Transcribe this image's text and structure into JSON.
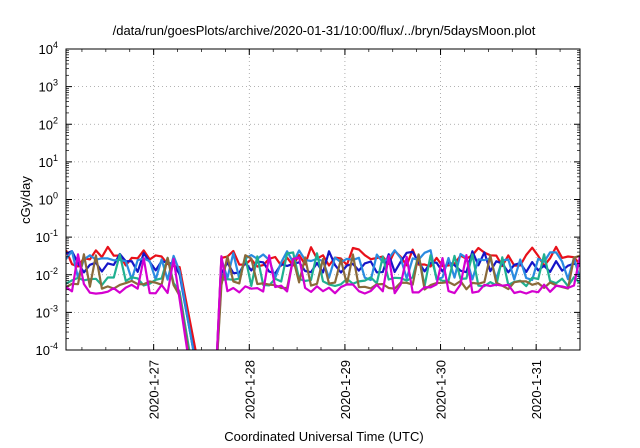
{
  "chart_data": {
    "type": "line",
    "title": "/data/run/goesPlots/archive/2020-01-31/10:00/flux/../bryn/5daysMoon.plot",
    "xlabel": "Coordinated Universal Time (UTC)",
    "ylabel": "cGy/day",
    "xscale": "time",
    "yscale": "log",
    "xlim": [
      "2020-01-26T02:00",
      "2020-01-31T11:00"
    ],
    "ylim": [
      0.0001,
      10000
    ],
    "grid": true,
    "legend": "none",
    "x_ticks": [
      "2020-1-27",
      "2020-1-28",
      "2020-1-29",
      "2020-1-30",
      "2020-1-31"
    ],
    "y_ticks": [
      {
        "value": 10000,
        "base": "10",
        "exp": "4"
      },
      {
        "value": 1000,
        "base": "10",
        "exp": "3"
      },
      {
        "value": 100,
        "base": "10",
        "exp": "2"
      },
      {
        "value": 10,
        "base": "10",
        "exp": "1"
      },
      {
        "value": 1,
        "base": "10",
        "exp": "0"
      },
      {
        "value": 0.1,
        "base": "10",
        "exp": "-1"
      },
      {
        "value": 0.01,
        "base": "10",
        "exp": "-2"
      },
      {
        "value": 0.001,
        "base": "10",
        "exp": "-3"
      },
      {
        "value": 0.0001,
        "base": "10",
        "exp": "-4"
      }
    ],
    "data_gap": [
      "2020-01-27T06:00",
      "2020-01-27T16:30"
    ],
    "series": [
      {
        "color": "#e8101a",
        "baseline": 0.03,
        "spike": 0.055,
        "dip": 0.018
      },
      {
        "color": "#1515c8",
        "baseline": 0.02,
        "spike": 0.045,
        "dip": 0.012
      },
      {
        "color": "#2a8be0",
        "baseline": 0.025,
        "spike": 0.045,
        "dip": 0.008
      },
      {
        "color": "#20b090",
        "baseline": 0.0075,
        "spike": 0.04,
        "dip": 0.0055
      },
      {
        "color": "#8a6a3a",
        "baseline": 0.006,
        "spike": 0.035,
        "dip": 0.0045
      },
      {
        "color": "#d400d0",
        "baseline": 0.005,
        "spike": 0.035,
        "dip": 0.0035
      }
    ]
  }
}
